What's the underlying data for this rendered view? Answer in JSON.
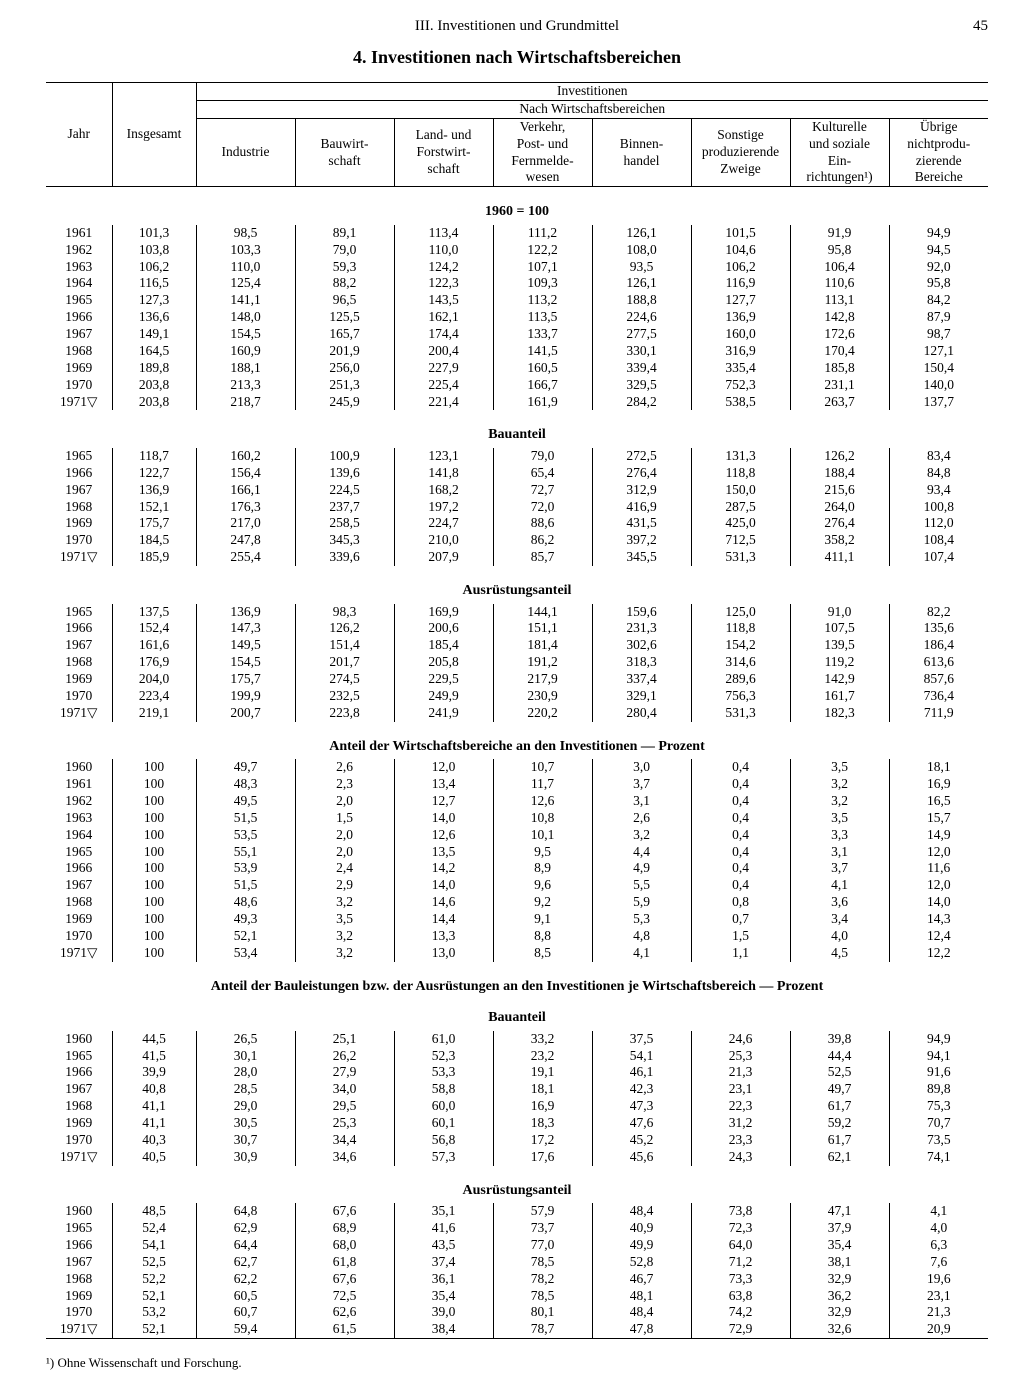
{
  "header": {
    "section": "III. Investitionen und Grundmittel",
    "page": "45",
    "title": "4. Investitionen nach Wirtschaftsbereichen"
  },
  "columns": {
    "year": "Jahr",
    "total": "Insgesamt",
    "group_top": "Investitionen",
    "group_sub": "Nach Wirtschaftsbereichen",
    "c1": "Industrie",
    "c2": "Bauwirt-\nschaft",
    "c3": "Land- und\nForstwirt-\nschaft",
    "c4": "Verkehr,\nPost- und\nFernmelde-\nwesen",
    "c5": "Binnen-\nhandel",
    "c6": "Sonstige\nproduzierende\nZweige",
    "c7": "Kulturelle\nund soziale\nEin-\nrichtungen¹)",
    "c8": "Übrige\nnichtprodu-\nzierende\nBereiche"
  },
  "sections": [
    {
      "title": "1960 = 100",
      "rows": [
        [
          "1961",
          "101,3",
          "98,5",
          "89,1",
          "113,4",
          "111,2",
          "126,1",
          "101,5",
          "91,9",
          "94,9"
        ],
        [
          "1962",
          "103,8",
          "103,3",
          "79,0",
          "110,0",
          "122,2",
          "108,0",
          "104,6",
          "95,8",
          "94,5"
        ],
        [
          "1963",
          "106,2",
          "110,0",
          "59,3",
          "124,2",
          "107,1",
          "93,5",
          "106,2",
          "106,4",
          "92,0"
        ],
        [
          "1964",
          "116,5",
          "125,4",
          "88,2",
          "122,3",
          "109,3",
          "126,1",
          "116,9",
          "110,6",
          "95,8"
        ],
        [
          "1965",
          "127,3",
          "141,1",
          "96,5",
          "143,5",
          "113,2",
          "188,8",
          "127,7",
          "113,1",
          "84,2"
        ],
        [
          "1966",
          "136,6",
          "148,0",
          "125,5",
          "162,1",
          "113,5",
          "224,6",
          "136,9",
          "142,8",
          "87,9"
        ],
        [
          "1967",
          "149,1",
          "154,5",
          "165,7",
          "174,4",
          "133,7",
          "277,5",
          "160,0",
          "172,6",
          "98,7"
        ],
        [
          "1968",
          "164,5",
          "160,9",
          "201,9",
          "200,4",
          "141,5",
          "330,1",
          "316,9",
          "170,4",
          "127,1"
        ],
        [
          "1969",
          "189,8",
          "188,1",
          "256,0",
          "227,9",
          "160,5",
          "339,4",
          "335,4",
          "185,8",
          "150,4"
        ],
        [
          "1970",
          "203,8",
          "213,3",
          "251,3",
          "225,4",
          "166,7",
          "329,5",
          "752,3",
          "231,1",
          "140,0"
        ],
        [
          "1971▽",
          "203,8",
          "218,7",
          "245,9",
          "221,4",
          "161,9",
          "284,2",
          "538,5",
          "263,7",
          "137,7"
        ]
      ]
    },
    {
      "title": "Bauanteil",
      "rows": [
        [
          "1965",
          "118,7",
          "160,2",
          "100,9",
          "123,1",
          "79,0",
          "272,5",
          "131,3",
          "126,2",
          "83,4"
        ],
        [
          "1966",
          "122,7",
          "156,4",
          "139,6",
          "141,8",
          "65,4",
          "276,4",
          "118,8",
          "188,4",
          "84,8"
        ],
        [
          "1967",
          "136,9",
          "166,1",
          "224,5",
          "168,2",
          "72,7",
          "312,9",
          "150,0",
          "215,6",
          "93,4"
        ],
        [
          "1968",
          "152,1",
          "176,3",
          "237,7",
          "197,2",
          "72,0",
          "416,9",
          "287,5",
          "264,0",
          "100,8"
        ],
        [
          "1969",
          "175,7",
          "217,0",
          "258,5",
          "224,7",
          "88,6",
          "431,5",
          "425,0",
          "276,4",
          "112,0"
        ],
        [
          "1970",
          "184,5",
          "247,8",
          "345,3",
          "210,0",
          "86,2",
          "397,2",
          "712,5",
          "358,2",
          "108,4"
        ],
        [
          "1971▽",
          "185,9",
          "255,4",
          "339,6",
          "207,9",
          "85,7",
          "345,5",
          "531,3",
          "411,1",
          "107,4"
        ]
      ]
    },
    {
      "title": "Ausrüstungsanteil",
      "rows": [
        [
          "1965",
          "137,5",
          "136,9",
          "98,3",
          "169,9",
          "144,1",
          "159,6",
          "125,0",
          "91,0",
          "82,2"
        ],
        [
          "1966",
          "152,4",
          "147,3",
          "126,2",
          "200,6",
          "151,1",
          "231,3",
          "118,8",
          "107,5",
          "135,6"
        ],
        [
          "1967",
          "161,6",
          "149,5",
          "151,4",
          "185,4",
          "181,4",
          "302,6",
          "154,2",
          "139,5",
          "186,4"
        ],
        [
          "1968",
          "176,9",
          "154,5",
          "201,7",
          "205,8",
          "191,2",
          "318,3",
          "314,6",
          "119,2",
          "613,6"
        ],
        [
          "1969",
          "204,0",
          "175,7",
          "274,5",
          "229,5",
          "217,9",
          "337,4",
          "289,6",
          "142,9",
          "857,6"
        ],
        [
          "1970",
          "223,4",
          "199,9",
          "232,5",
          "249,9",
          "230,9",
          "329,1",
          "756,3",
          "161,7",
          "736,4"
        ],
        [
          "1971▽",
          "219,1",
          "200,7",
          "223,8",
          "241,9",
          "220,2",
          "280,4",
          "531,3",
          "182,3",
          "711,9"
        ]
      ]
    },
    {
      "title": "Anteil der Wirtschaftsbereiche an den Investitionen — Prozent",
      "rows": [
        [
          "1960",
          "100",
          "49,7",
          "2,6",
          "12,0",
          "10,7",
          "3,0",
          "0,4",
          "3,5",
          "18,1"
        ],
        [
          "1961",
          "100",
          "48,3",
          "2,3",
          "13,4",
          "11,7",
          "3,7",
          "0,4",
          "3,2",
          "16,9"
        ],
        [
          "1962",
          "100",
          "49,5",
          "2,0",
          "12,7",
          "12,6",
          "3,1",
          "0,4",
          "3,2",
          "16,5"
        ],
        [
          "1963",
          "100",
          "51,5",
          "1,5",
          "14,0",
          "10,8",
          "2,6",
          "0,4",
          "3,5",
          "15,7"
        ],
        [
          "1964",
          "100",
          "53,5",
          "2,0",
          "12,6",
          "10,1",
          "3,2",
          "0,4",
          "3,3",
          "14,9"
        ],
        [
          "1965",
          "100",
          "55,1",
          "2,0",
          "13,5",
          "9,5",
          "4,4",
          "0,4",
          "3,1",
          "12,0"
        ],
        [
          "1966",
          "100",
          "53,9",
          "2,4",
          "14,2",
          "8,9",
          "4,9",
          "0,4",
          "3,7",
          "11,6"
        ],
        [
          "1967",
          "100",
          "51,5",
          "2,9",
          "14,0",
          "9,6",
          "5,5",
          "0,4",
          "4,1",
          "12,0"
        ],
        [
          "1968",
          "100",
          "48,6",
          "3,2",
          "14,6",
          "9,2",
          "5,9",
          "0,8",
          "3,6",
          "14,0"
        ],
        [
          "1969",
          "100",
          "49,3",
          "3,5",
          "14,4",
          "9,1",
          "5,3",
          "0,7",
          "3,4",
          "14,3"
        ],
        [
          "1970",
          "100",
          "52,1",
          "3,2",
          "13,3",
          "8,8",
          "4,8",
          "1,5",
          "4,0",
          "12,4"
        ],
        [
          "1971▽",
          "100",
          "53,4",
          "3,2",
          "13,0",
          "8,5",
          "4,1",
          "1,1",
          "4,5",
          "12,2"
        ]
      ]
    },
    {
      "title": "Anteil der Bauleistungen bzw. der Ausrüstungen an den Investitionen je Wirtschaftsbereich — Prozent",
      "subtitle": "Bauanteil",
      "rows": [
        [
          "1960",
          "44,5",
          "26,5",
          "25,1",
          "61,0",
          "33,2",
          "37,5",
          "24,6",
          "39,8",
          "94,9"
        ],
        [
          "1965",
          "41,5",
          "30,1",
          "26,2",
          "52,3",
          "23,2",
          "54,1",
          "25,3",
          "44,4",
          "94,1"
        ],
        [
          "1966",
          "39,9",
          "28,0",
          "27,9",
          "53,3",
          "19,1",
          "46,1",
          "21,3",
          "52,5",
          "91,6"
        ],
        [
          "1967",
          "40,8",
          "28,5",
          "34,0",
          "58,8",
          "18,1",
          "42,3",
          "23,1",
          "49,7",
          "89,8"
        ],
        [
          "1968",
          "41,1",
          "29,0",
          "29,5",
          "60,0",
          "16,9",
          "47,3",
          "22,3",
          "61,7",
          "75,3"
        ],
        [
          "1969",
          "41,1",
          "30,5",
          "25,3",
          "60,1",
          "18,3",
          "47,6",
          "31,2",
          "59,2",
          "70,7"
        ],
        [
          "1970",
          "40,3",
          "30,7",
          "34,4",
          "56,8",
          "17,2",
          "45,2",
          "23,3",
          "61,7",
          "73,5"
        ],
        [
          "1971▽",
          "40,5",
          "30,9",
          "34,6",
          "57,3",
          "17,6",
          "45,6",
          "24,3",
          "62,1",
          "74,1"
        ]
      ]
    },
    {
      "title": "Ausrüstungsanteil",
      "rows": [
        [
          "1960",
          "48,5",
          "64,8",
          "67,6",
          "35,1",
          "57,9",
          "48,4",
          "73,8",
          "47,1",
          "4,1"
        ],
        [
          "1965",
          "52,4",
          "62,9",
          "68,9",
          "41,6",
          "73,7",
          "40,9",
          "72,3",
          "37,9",
          "4,0"
        ],
        [
          "1966",
          "54,1",
          "64,4",
          "68,0",
          "43,5",
          "77,0",
          "49,9",
          "64,0",
          "35,4",
          "6,3"
        ],
        [
          "1967",
          "52,5",
          "62,7",
          "61,8",
          "37,4",
          "78,5",
          "52,8",
          "71,2",
          "38,1",
          "7,6"
        ],
        [
          "1968",
          "52,2",
          "62,2",
          "67,6",
          "36,1",
          "78,2",
          "46,7",
          "73,3",
          "32,9",
          "19,6"
        ],
        [
          "1969",
          "52,1",
          "60,5",
          "72,5",
          "35,4",
          "78,5",
          "48,1",
          "63,8",
          "36,2",
          "23,1"
        ],
        [
          "1970",
          "53,2",
          "60,7",
          "62,6",
          "39,0",
          "80,1",
          "48,4",
          "74,2",
          "32,9",
          "21,3"
        ],
        [
          "1971▽",
          "52,1",
          "59,4",
          "61,5",
          "38,4",
          "78,7",
          "47,8",
          "72,9",
          "32,6",
          "20,9"
        ]
      ]
    }
  ],
  "footnote": "¹) Ohne Wissenschaft und Forschung."
}
